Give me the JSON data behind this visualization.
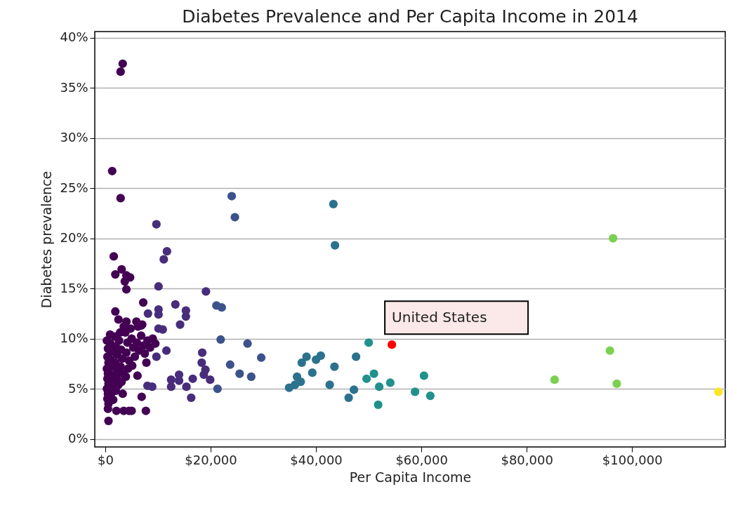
{
  "chart_data": {
    "type": "scatter",
    "title": "Diabetes Prevalence and Per Capita Income in 2014",
    "xlabel": "Per Capita Income",
    "ylabel": "Diabetes prevalence",
    "xlim": [
      -2000,
      117700
    ],
    "ylim": [
      -0.8,
      40.6
    ],
    "xticks": [
      {
        "value": 0,
        "label": "$0"
      },
      {
        "value": 20000,
        "label": "$20,000"
      },
      {
        "value": 40000,
        "label": "$40,000"
      },
      {
        "value": 60000,
        "label": "$60,000"
      },
      {
        "value": 80000,
        "label": "$80,000"
      },
      {
        "value": 100000,
        "label": "$100,000"
      }
    ],
    "yticks": [
      {
        "value": 0,
        "label": "0%"
      },
      {
        "value": 5,
        "label": "5%"
      },
      {
        "value": 10,
        "label": "10%"
      },
      {
        "value": 15,
        "label": "15%"
      },
      {
        "value": 20,
        "label": "20%"
      },
      {
        "value": 25,
        "label": "25%"
      },
      {
        "value": 30,
        "label": "30%"
      },
      {
        "value": 35,
        "label": "35%"
      },
      {
        "value": 40,
        "label": "40%"
      }
    ],
    "grid": "y",
    "marker": "circle",
    "annotations": [
      {
        "text": "United States",
        "x": 54400,
        "y": 9.4
      }
    ],
    "series": [
      {
        "color": "#440154",
        "x": [
          3300,
          2900,
          1300,
          2900,
          1600,
          3100,
          1900,
          4000,
          4700,
          3700,
          4000,
          7200,
          1900,
          2500,
          4000,
          5900,
          6800,
          900,
          7800,
          6100,
          3300,
          6900,
          7700,
          2100,
          3500,
          4500,
          5000,
          600,
          300,
          500,
          400,
          600,
          300,
          500,
          400,
          600,
          300,
          500,
          400,
          600,
          500,
          1000,
          1200,
          1000,
          1300,
          1100,
          1400,
          1000,
          1200,
          1500,
          1800,
          2000,
          2200,
          1900,
          2300,
          2100,
          2500,
          2000,
          2600,
          3000,
          3200,
          2900,
          3400,
          3100,
          3800,
          4200,
          4000,
          4500,
          4300,
          3900,
          5000,
          5300,
          5600,
          5100,
          6000,
          6400,
          6800,
          7200,
          7500,
          8000,
          8500,
          9000,
          9500,
          3500,
          4800,
          6200,
          7000,
          2800
        ],
        "values": [
          37.4,
          36.6,
          26.7,
          24.0,
          18.2,
          16.9,
          16.4,
          16.3,
          16.1,
          15.7,
          14.9,
          13.6,
          12.7,
          11.9,
          11.7,
          11.7,
          11.3,
          10.4,
          7.6,
          6.3,
          4.5,
          4.2,
          2.8,
          2.8,
          2.8,
          2.8,
          2.8,
          1.8,
          9.8,
          9.0,
          8.2,
          7.6,
          7.0,
          6.5,
          6.0,
          5.5,
          5.0,
          4.5,
          4.0,
          3.5,
          3.0,
          9.5,
          8.7,
          7.9,
          7.2,
          6.4,
          5.8,
          5.2,
          4.6,
          3.9,
          10.2,
          9.2,
          8.4,
          7.6,
          6.8,
          6.1,
          5.4,
          4.8,
          9.8,
          8.9,
          8.0,
          7.2,
          6.5,
          5.7,
          10.6,
          9.6,
          8.6,
          7.8,
          7.0,
          6.2,
          10.0,
          9.1,
          8.2,
          7.3,
          9.6,
          8.8,
          10.3,
          9.3,
          8.5,
          9.8,
          9.1,
          10.0,
          9.5,
          11.2,
          11.0,
          11.2,
          11.4,
          10.6
        ]
      },
      {
        "color": "#472d7b",
        "x": [
          9700,
          11700,
          11100,
          10100,
          19100,
          13300,
          10100,
          10100,
          8100,
          15300,
          15300,
          14200,
          10100,
          10900,
          18400,
          11600,
          9700,
          18300,
          19000,
          19900,
          12500,
          14000,
          14000,
          12500,
          15400,
          16600,
          8000,
          8900,
          16300,
          18700
        ],
        "values": [
          21.4,
          18.7,
          17.9,
          15.2,
          14.7,
          13.4,
          12.9,
          12.4,
          12.5,
          12.8,
          12.2,
          11.4,
          11.0,
          10.9,
          8.6,
          8.8,
          8.2,
          7.6,
          6.9,
          5.9,
          5.9,
          6.4,
          5.8,
          5.2,
          5.2,
          6.0,
          5.3,
          5.2,
          4.1,
          6.4
        ]
      },
      {
        "color": "#3b528b",
        "x": [
          24000,
          24600,
          21100,
          22100,
          21900,
          27000,
          29600,
          23700,
          25500,
          27700,
          21300
        ],
        "values": [
          24.2,
          22.1,
          13.3,
          13.1,
          9.9,
          9.5,
          8.1,
          7.4,
          6.5,
          6.2,
          5.0
        ]
      },
      {
        "color": "#2c728e",
        "x": [
          43300,
          43600,
          34900,
          36000,
          36400,
          37100,
          37300,
          38200,
          39300,
          40000,
          40900,
          42600,
          43500,
          46200,
          47200,
          47600
        ],
        "values": [
          23.4,
          19.3,
          5.1,
          5.4,
          6.2,
          5.7,
          7.6,
          8.2,
          6.6,
          7.9,
          8.3,
          5.4,
          7.2,
          4.1,
          4.9,
          8.2
        ]
      },
      {
        "color": "#21918c",
        "x": [
          49600,
          50000,
          51000,
          51800,
          52000,
          54100,
          58800,
          60500,
          61700
        ],
        "values": [
          6.0,
          9.6,
          6.5,
          3.4,
          5.2,
          5.6,
          4.7,
          6.3,
          4.3
        ]
      },
      {
        "color": "#7ad151",
        "x": [
          85300,
          96400,
          95800,
          97100
        ],
        "values": [
          5.9,
          20.0,
          8.8,
          5.5
        ]
      },
      {
        "color": "#fde725",
        "x": [
          116400
        ],
        "values": [
          4.7
        ]
      },
      {
        "color": "#ff0000",
        "x": [
          54400
        ],
        "values": [
          9.4
        ]
      }
    ]
  }
}
